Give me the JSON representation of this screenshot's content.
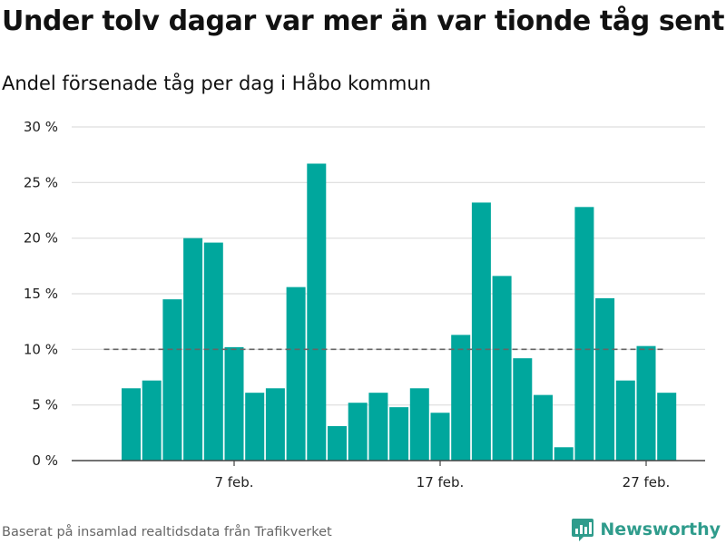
{
  "title": "Under tolv dagar var mer än var tionde tåg sent",
  "subtitle": "Andel försenade tåg per dag i Håbo kommun",
  "footer": "Baserat på insamlad realtidsdata från Trafikverket",
  "brand": "Newsworthy",
  "colors": {
    "bar": "#00a79d",
    "grid": "#dddddd",
    "reference": "#666666",
    "axis": "#444444",
    "brand": "#2f9c8c"
  },
  "chart_data": {
    "type": "bar",
    "x": [
      "2 feb.",
      "3 feb.",
      "4 feb.",
      "5 feb.",
      "6 feb.",
      "7 feb.",
      "8 feb.",
      "9 feb.",
      "10 feb.",
      "11 feb.",
      "12 feb.",
      "13 feb.",
      "14 feb.",
      "15 feb.",
      "16 feb.",
      "17 feb.",
      "18 feb.",
      "19 feb.",
      "20 feb.",
      "21 feb.",
      "22 feb.",
      "23 feb.",
      "24 feb.",
      "25 feb.",
      "26 feb.",
      "27 feb.",
      "28 feb."
    ],
    "values": [
      6.5,
      7.2,
      14.5,
      20.0,
      19.6,
      10.2,
      6.1,
      6.5,
      15.6,
      26.7,
      3.1,
      5.2,
      6.1,
      4.8,
      6.5,
      4.3,
      11.3,
      23.2,
      16.6,
      9.2,
      5.9,
      1.2,
      22.8,
      14.6,
      7.2,
      10.3,
      6.1
    ],
    "ylim": [
      0,
      30
    ],
    "yticks": [
      0,
      5,
      10,
      15,
      20,
      25,
      30
    ],
    "ytick_labels": [
      "0 %",
      "5 %",
      "10 %",
      "15 %",
      "20 %",
      "25 %",
      "30 %"
    ],
    "xticks": [
      "7 feb.",
      "17 feb.",
      "27 feb."
    ],
    "reference_line": 10,
    "grid": true,
    "legend": "none"
  }
}
